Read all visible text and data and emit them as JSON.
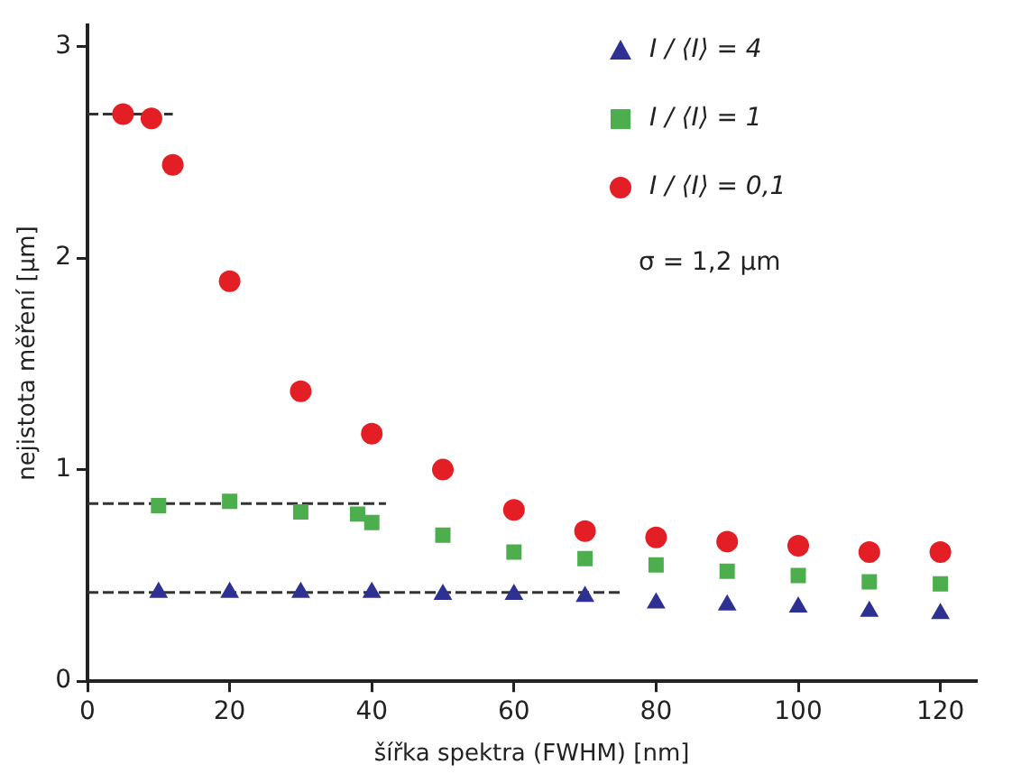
{
  "chart_data": {
    "type": "scatter",
    "xlabel": "šířka spektra (FWHM) [nm]",
    "ylabel": "nejistota měření [μm]",
    "xlim": [
      0,
      125
    ],
    "xticks": [
      0,
      20,
      40,
      60,
      80,
      100,
      120
    ],
    "ylim": [
      0,
      3.1
    ],
    "yticks": [
      0,
      1,
      2,
      3
    ],
    "grid": false,
    "legend": "top right",
    "annotations": [
      "σ = 1,2 μm"
    ],
    "series": [
      {
        "name": "I / ⟨I⟩ = 4",
        "color": "#2e3192",
        "marker": "triangle",
        "x": [
          10,
          20,
          30,
          40,
          50,
          60,
          70,
          80,
          90,
          100,
          110,
          120
        ],
        "values": [
          0.42,
          0.42,
          0.42,
          0.42,
          0.41,
          0.41,
          0.4,
          0.37,
          0.36,
          0.35,
          0.33,
          0.32
        ]
      },
      {
        "name": "I / ⟨I⟩ = 1",
        "color": "#4cae4c",
        "marker": "square",
        "x": [
          10,
          20,
          30,
          38,
          40,
          50,
          60,
          70,
          80,
          90,
          100,
          110,
          120
        ],
        "values": [
          0.83,
          0.85,
          0.8,
          0.79,
          0.75,
          0.69,
          0.61,
          0.58,
          0.55,
          0.52,
          0.5,
          0.47,
          0.46
        ]
      },
      {
        "name": "I / ⟨I⟩ = 0,1",
        "color": "#e31e24",
        "marker": "circle",
        "x": [
          5,
          9,
          12,
          20,
          30,
          40,
          50,
          60,
          70,
          80,
          90,
          100,
          110,
          120
        ],
        "values": [
          2.68,
          2.66,
          2.44,
          1.89,
          1.37,
          1.17,
          1.0,
          0.81,
          0.71,
          0.68,
          0.66,
          0.64,
          0.61,
          0.61
        ]
      },
      {
        "type": "line",
        "color": "#333333",
        "line_style": "dashed",
        "marker": "none",
        "x": [
          0,
          12
        ],
        "values": [
          2.68,
          2.68
        ]
      },
      {
        "type": "line",
        "color": "#333333",
        "line_style": "dashed",
        "marker": "none",
        "x": [
          0,
          42
        ],
        "values": [
          0.84,
          0.84
        ]
      },
      {
        "type": "line",
        "color": "#333333",
        "line_style": "dashed",
        "marker": "none",
        "x": [
          0,
          75
        ],
        "values": [
          0.42,
          0.42
        ]
      }
    ]
  }
}
